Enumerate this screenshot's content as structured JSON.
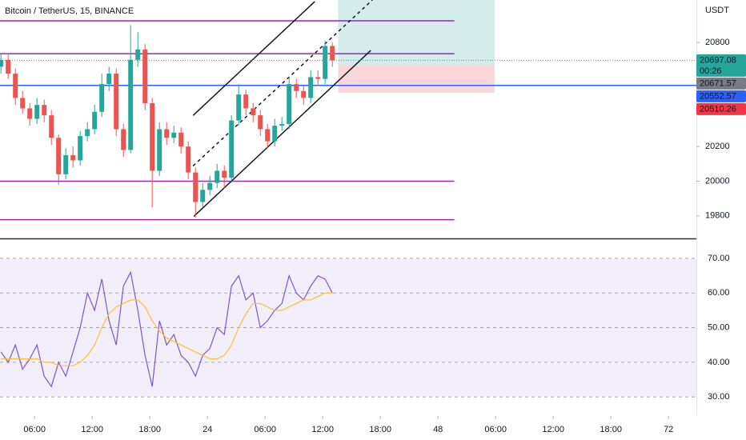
{
  "chart_data": [
    {
      "type": "candlestick",
      "title": "Bitcoin / TetherUS, 15, BINANCE",
      "unit_label": "USDT",
      "up_color": "#26a69a",
      "down_color": "#ef5350",
      "x": [
        2.5,
        3.25,
        4,
        4.75,
        5.5,
        6.25,
        7,
        7.75,
        8.5,
        9.25,
        10,
        10.75,
        11.5,
        12.25,
        13,
        13.75,
        14.5,
        15.25,
        16,
        16.75,
        17.5,
        18.25,
        19,
        19.75,
        20.5,
        21.25,
        22,
        22.75,
        23.5,
        24.25,
        25,
        25.75,
        26.5,
        27.25,
        28,
        28.75,
        29.5,
        30.25,
        31,
        31.75,
        32.5,
        33.25,
        34,
        34.75,
        35.5,
        36.25,
        37
      ],
      "open": [
        20660,
        20700,
        20620,
        20480,
        20420,
        20360,
        20440,
        20380,
        20250,
        20040,
        20150,
        20120,
        20260,
        20300,
        20400,
        20560,
        20620,
        20300,
        20180,
        20700,
        20760,
        20450,
        20060,
        20300,
        20250,
        20280,
        20200,
        20050,
        19880,
        19950,
        19990,
        20060,
        20020,
        20350,
        20500,
        20420,
        20380,
        20300,
        20230,
        20320,
        20330,
        20560,
        20520,
        20480,
        20600,
        20590,
        20780
      ],
      "high": [
        20740,
        20730,
        20650,
        20520,
        20450,
        20480,
        20470,
        20410,
        20270,
        20190,
        20200,
        20290,
        20340,
        20440,
        20620,
        20660,
        20650,
        20330,
        20900,
        20860,
        20790,
        20480,
        20340,
        20340,
        20320,
        20310,
        20230,
        20080,
        19990,
        20030,
        20100,
        20090,
        20380,
        20560,
        20530,
        20450,
        20410,
        20330,
        20360,
        20370,
        20600,
        20590,
        20550,
        20640,
        20640,
        20810,
        20800
      ],
      "low": [
        20620,
        20590,
        20440,
        20390,
        20320,
        20330,
        20340,
        20210,
        19980,
        20010,
        20080,
        20090,
        20230,
        20270,
        20370,
        20520,
        20260,
        20140,
        20160,
        20660,
        20410,
        19850,
        20030,
        20210,
        20220,
        20160,
        20010,
        19790,
        19850,
        19920,
        19960,
        19960,
        19990,
        20320,
        20380,
        20340,
        20260,
        20190,
        20200,
        20290,
        20300,
        20480,
        20440,
        20450,
        20550,
        20560,
        20660
      ],
      "close": [
        20700,
        20620,
        20480,
        20420,
        20360,
        20440,
        20380,
        20250,
        20040,
        20150,
        20120,
        20260,
        20300,
        20400,
        20560,
        20620,
        20300,
        20180,
        20700,
        20760,
        20450,
        20060,
        20300,
        20250,
        20280,
        20200,
        20050,
        19880,
        19950,
        19990,
        20060,
        20020,
        20350,
        20500,
        20420,
        20380,
        20300,
        20230,
        20320,
        20330,
        20560,
        20520,
        20480,
        20600,
        20590,
        20780,
        20697.08
      ],
      "xlim": [
        2.4,
        74.9
      ],
      "ylim": [
        19670,
        21045
      ],
      "yticks": [
        19800,
        20000,
        20200,
        20800
      ],
      "countdown": "00:26",
      "hlines": [
        {
          "value": 20925,
          "color": "#9c27b0",
          "x_end": 49.7
        },
        {
          "value": 20735,
          "color": "#9c27b0",
          "x_end": 49.7
        },
        {
          "value": 20000,
          "color": "#9c27b0",
          "x_end": 49.7
        },
        {
          "value": 19778,
          "color": "#9c27b0",
          "x_end": 49.7
        },
        {
          "value": 20552.57,
          "color": "#2962ff",
          "x_end": 74.9
        }
      ],
      "channel": [
        {
          "x": [
            22.58,
            41
          ],
          "y": [
            19797,
            20754
          ],
          "dashed": false
        },
        {
          "x": [
            22.5,
            35.17
          ],
          "y": [
            20379,
            21036
          ],
          "dashed": false
        },
        {
          "x": [
            22.5,
            41.17
          ],
          "y": [
            20088,
            21045
          ],
          "dashed": true
        }
      ],
      "position": {
        "x": [
          37.6,
          53.9
        ],
        "entry": 20671.57,
        "stop": 20510.26
      }
    },
    {
      "type": "line",
      "x": [
        2.5,
        3.25,
        4,
        4.75,
        5.5,
        6.25,
        7,
        7.75,
        8.5,
        9.25,
        10,
        10.75,
        11.5,
        12.25,
        13,
        13.75,
        14.5,
        15.25,
        16,
        16.75,
        17.5,
        18.25,
        19,
        19.75,
        20.5,
        21.25,
        22,
        22.75,
        23.5,
        24.25,
        25,
        25.75,
        26.5,
        27.25,
        28,
        28.75,
        29.5,
        30.25,
        31,
        31.75,
        32.5,
        33.25,
        34,
        34.75,
        35.5,
        36.25,
        37
      ],
      "series": [
        {
          "color": "#7e57c2",
          "values": [
            43,
            40,
            45,
            38,
            41,
            45,
            36,
            33,
            40,
            36,
            43,
            50,
            60,
            55,
            64,
            52,
            45,
            62,
            66,
            55,
            42,
            33,
            52,
            45,
            48,
            42,
            40,
            36,
            42,
            44,
            50,
            48,
            62,
            65,
            58,
            60,
            50,
            52,
            55,
            57,
            65,
            60,
            58,
            62,
            65,
            64,
            60
          ]
        },
        {
          "color": "#f7c23a",
          "values": [
            41,
            41,
            41,
            41,
            41,
            41,
            40,
            40,
            39,
            39,
            39,
            40,
            42,
            45,
            50,
            54,
            56,
            57,
            58,
            58,
            56,
            52,
            49,
            47,
            46,
            45,
            44,
            43,
            42,
            41,
            41,
            42,
            45,
            50,
            54,
            57,
            57,
            56,
            55,
            55,
            56,
            57,
            58,
            58,
            59,
            60,
            60
          ]
        }
      ],
      "xlim": [
        2.4,
        74.9
      ],
      "ylim": [
        24.5,
        75.3
      ],
      "band": [
        30,
        70
      ],
      "yticks": [
        {
          "value": 30,
          "label": "30.00"
        },
        {
          "value": 40,
          "label": "40.00"
        },
        {
          "value": 50,
          "label": "50.00"
        },
        {
          "value": 60,
          "label": "60.00"
        },
        {
          "value": 70,
          "label": "70.00"
        }
      ],
      "xticks": [
        {
          "value": 6,
          "label": "06:00"
        },
        {
          "value": 12,
          "label": "12:00"
        },
        {
          "value": 18,
          "label": "18:00"
        },
        24,
        {
          "value": 30,
          "label": "06:00"
        },
        {
          "value": 36,
          "label": "12:00"
        },
        {
          "value": 42,
          "label": "18:00"
        },
        48,
        {
          "value": 54,
          "label": "06:00"
        },
        {
          "value": 60,
          "label": "12:00"
        },
        {
          "value": 66,
          "label": "18:00"
        },
        72
      ]
    }
  ]
}
